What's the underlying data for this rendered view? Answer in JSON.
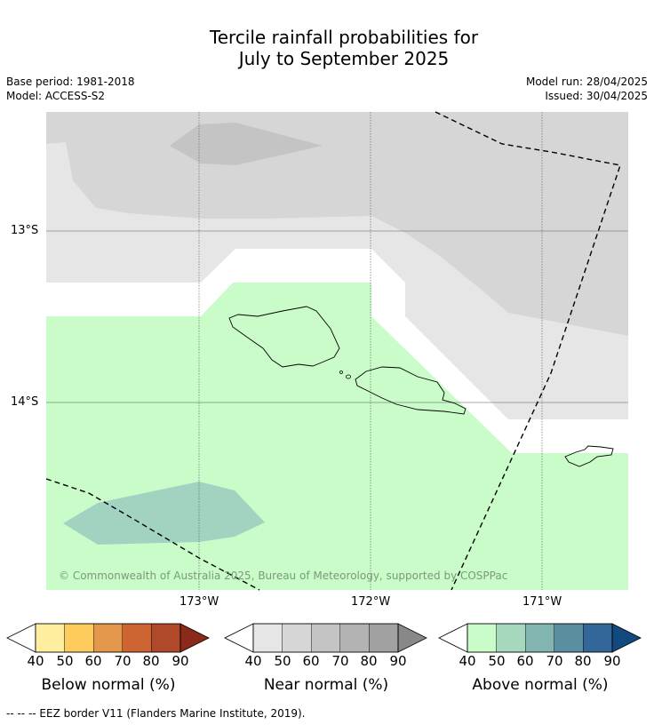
{
  "title_line1": "Tercile rainfall probabilities for",
  "title_line2": "July to September 2025",
  "base_period": "Base period: 1981-2018",
  "model": "Model: ACCESS-S2",
  "model_run": "Model run: 28/04/2025",
  "issued": "Issued: 30/04/2025",
  "credit": "© Commonwealth of Australia 2025, Bureau of Meteorology, supported by COSPPac",
  "lat_labels": [
    "13°S",
    "14°S"
  ],
  "lon_labels": [
    "173°W",
    "172°W",
    "171°W"
  ],
  "legends": [
    {
      "title": "Below normal (%)",
      "ticks": [
        "40",
        "50",
        "60",
        "70",
        "80",
        "90"
      ],
      "colors": [
        "#ffffff",
        "#ffeda0",
        "#fecc5c",
        "#e3974a",
        "#cd6432",
        "#b0482a",
        "#8b2a1a"
      ]
    },
    {
      "title": "Near normal (%)",
      "ticks": [
        "40",
        "50",
        "60",
        "70",
        "80",
        "90"
      ],
      "colors": [
        "#ffffff",
        "#e6e6e6",
        "#d6d6d6",
        "#c4c4c4",
        "#b3b3b3",
        "#a1a1a1",
        "#888888"
      ]
    },
    {
      "title": "Above normal (%)",
      "ticks": [
        "40",
        "50",
        "60",
        "70",
        "80",
        "90"
      ],
      "colors": [
        "#ffffff",
        "#c9fcc9",
        "#a6d8bd",
        "#82b4b0",
        "#5b8fa0",
        "#336699",
        "#124a80"
      ]
    }
  ],
  "footnote": "--  --  -- EEZ border V11 (Flanders Marine Institute, 2019)."
}
